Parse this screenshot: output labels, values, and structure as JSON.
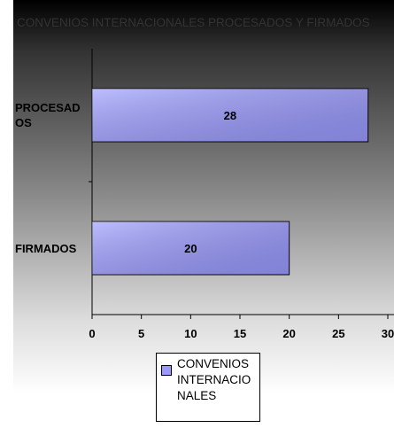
{
  "chart_data": {
    "type": "bar",
    "orientation": "horizontal",
    "title": "CONVENIOS INTERNACIONALES PROCESADOS Y FIRMADOS",
    "categories": [
      "PROCESADOS",
      "FIRMADOS"
    ],
    "series": [
      {
        "name": "CONVENIOS INTERNACIONALES",
        "color": "#9999ff",
        "values": [
          28,
          20
        ]
      }
    ],
    "xlim": [
      0,
      30
    ],
    "xticks": [
      0,
      5,
      10,
      15,
      20,
      25,
      30
    ],
    "legend": "bottom"
  }
}
